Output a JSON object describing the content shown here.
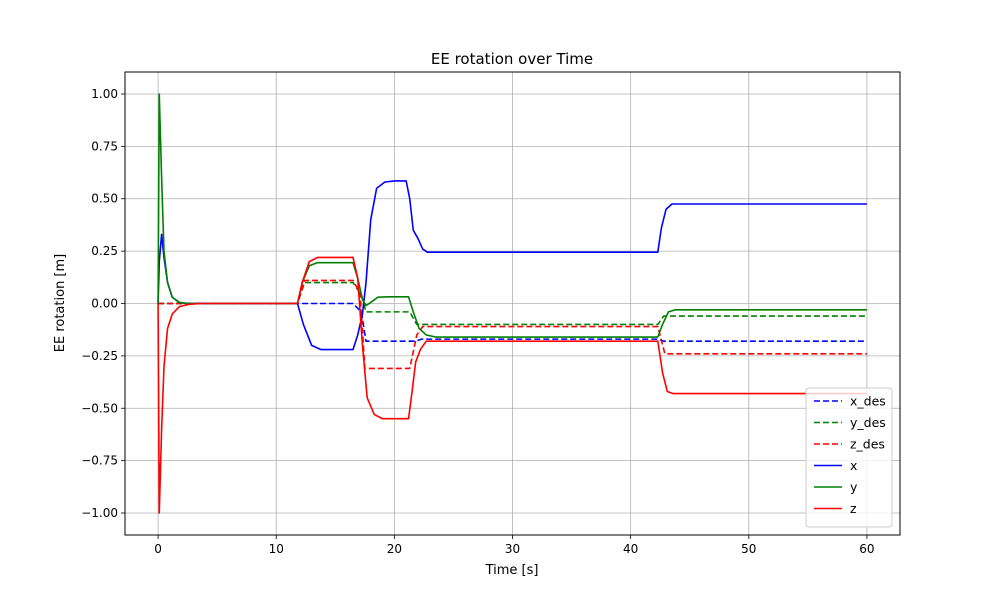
{
  "chart_data": {
    "type": "line",
    "title": "EE rotation over Time",
    "xlabel": "Time [s]",
    "ylabel": "EE rotation [m]",
    "xlim": [
      -2.8,
      62.8
    ],
    "ylim": [
      -1.105,
      1.105
    ],
    "xticks": [
      0,
      10,
      20,
      30,
      40,
      50,
      60
    ],
    "yticks": [
      -1.0,
      -0.75,
      -0.5,
      -0.25,
      0.0,
      0.25,
      0.5,
      0.75,
      1.0
    ],
    "xtick_labels": [
      "0",
      "10",
      "20",
      "30",
      "40",
      "50",
      "60"
    ],
    "ytick_labels": [
      "−1.00",
      "−0.75",
      "−0.50",
      "−0.25",
      "0.00",
      "0.25",
      "0.50",
      "0.75",
      "1.00"
    ],
    "grid": true,
    "legend_position": "lower-right",
    "series": [
      {
        "name": "x_des",
        "color": "#0000ff",
        "style": "dashed",
        "x": [
          0,
          11.8,
          12.2,
          16.5,
          17.2,
          17.6,
          21.2,
          21.8,
          22.3,
          42.3,
          42.8,
          60
        ],
        "y": [
          0,
          0,
          0,
          0,
          -0.04,
          -0.18,
          -0.18,
          -0.18,
          -0.17,
          -0.17,
          -0.18,
          -0.18
        ]
      },
      {
        "name": "y_des",
        "color": "#008000",
        "style": "dashed",
        "x": [
          0,
          11.8,
          12.4,
          16.5,
          17.2,
          17.6,
          21.3,
          21.9,
          42.3,
          42.8,
          60
        ],
        "y": [
          0,
          0,
          0.1,
          0.1,
          0.04,
          -0.04,
          -0.04,
          -0.1,
          -0.1,
          -0.06,
          -0.06
        ],
        "note": ""
      },
      {
        "name": "z_des",
        "color": "#ff0000",
        "style": "dashed",
        "x": [
          0,
          11.8,
          12.4,
          16.5,
          17.1,
          17.5,
          21.3,
          21.9,
          22.4,
          42.3,
          42.9,
          60
        ],
        "y": [
          0,
          0,
          0.11,
          0.11,
          0.05,
          -0.31,
          -0.31,
          -0.15,
          -0.11,
          -0.11,
          -0.24,
          -0.24
        ]
      },
      {
        "name": "x",
        "color": "#0000ff",
        "style": "solid",
        "x": [
          0,
          0.1,
          0.3,
          0.5,
          0.8,
          1.2,
          1.8,
          2.5,
          11.8,
          12.3,
          13.0,
          13.8,
          16.5,
          16.9,
          17.3,
          17.6,
          18.0,
          18.5,
          19.2,
          20.0,
          21.0,
          21.3,
          21.6,
          22.0,
          22.4,
          22.8,
          23.3,
          42.3,
          42.6,
          43.0,
          43.5,
          60
        ],
        "y": [
          0,
          0.2,
          0.33,
          0.22,
          0.1,
          0.03,
          0.005,
          0,
          0,
          -0.1,
          -0.2,
          -0.22,
          -0.22,
          -0.15,
          -0.05,
          0.1,
          0.4,
          0.55,
          0.58,
          0.585,
          0.585,
          0.5,
          0.35,
          0.31,
          0.26,
          0.245,
          0.245,
          0.245,
          0.36,
          0.45,
          0.475,
          0.475
        ]
      },
      {
        "name": "y",
        "color": "#008000",
        "style": "solid",
        "x": [
          0,
          0.1,
          0.3,
          0.5,
          0.8,
          1.2,
          1.8,
          2.5,
          11.8,
          12.2,
          12.8,
          13.5,
          16.5,
          16.9,
          17.3,
          17.6,
          18.0,
          18.6,
          19.5,
          21.2,
          21.6,
          22.1,
          22.7,
          23.5,
          42.3,
          42.7,
          43.2,
          43.8,
          60
        ],
        "y": [
          0,
          1.0,
          0.6,
          0.25,
          0.1,
          0.03,
          0.005,
          0,
          0,
          0.1,
          0.18,
          0.195,
          0.195,
          0.12,
          0.02,
          -0.01,
          0.005,
          0.03,
          0.032,
          0.032,
          -0.04,
          -0.12,
          -0.15,
          -0.16,
          -0.16,
          -0.1,
          -0.04,
          -0.03,
          -0.03
        ]
      },
      {
        "name": "z",
        "color": "#ff0000",
        "style": "solid",
        "x": [
          0,
          0.1,
          0.3,
          0.5,
          0.8,
          1.2,
          1.8,
          2.5,
          3.5,
          11.8,
          12.2,
          12.8,
          13.5,
          16.5,
          16.9,
          17.3,
          17.7,
          18.3,
          19.0,
          21.2,
          21.5,
          21.8,
          22.2,
          22.7,
          23.5,
          42.3,
          42.7,
          43.1,
          43.6,
          60
        ],
        "y": [
          0,
          -1.0,
          -0.6,
          -0.3,
          -0.12,
          -0.05,
          -0.015,
          -0.005,
          0,
          0,
          0.1,
          0.2,
          0.22,
          0.22,
          0.12,
          -0.2,
          -0.45,
          -0.53,
          -0.55,
          -0.55,
          -0.42,
          -0.28,
          -0.22,
          -0.18,
          -0.18,
          -0.18,
          -0.33,
          -0.42,
          -0.43,
          -0.43
        ]
      }
    ]
  }
}
